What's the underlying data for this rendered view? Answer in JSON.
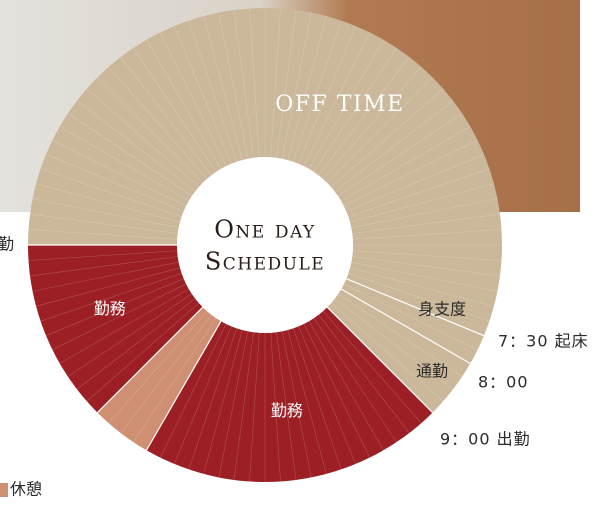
{
  "chart_data": {
    "type": "donut",
    "title_lines": [
      "One day",
      "Schedule"
    ],
    "categories": [
      "身支度",
      "通勤",
      "勤務",
      "休憩",
      "勤務",
      "OFF TIME"
    ],
    "values": [
      0.5,
      1,
      5,
      1,
      3,
      13.5
    ],
    "colors": [
      "#cbb89a",
      "#cbb89a",
      "#9b1f24",
      "#cf8f72",
      "#9b1f24",
      "#cbb89a"
    ],
    "start": 7.5,
    "annotations": [
      {
        "text": "7：30 起床",
        "at": 7.5
      },
      {
        "text": "8：00",
        "at": 8
      },
      {
        "text": "9：00 出勤",
        "at": 9
      },
      {
        "text": "退勤",
        "at": 18
      }
    ],
    "legend": [
      {
        "category": 3
      }
    ]
  }
}
